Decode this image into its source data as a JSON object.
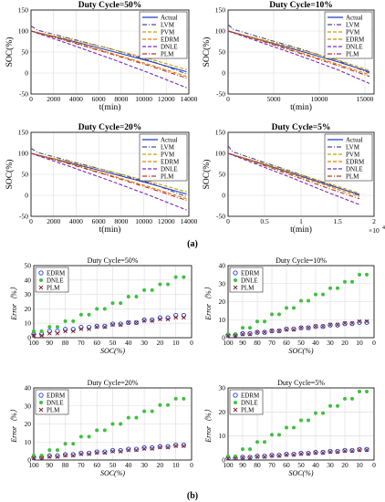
{
  "figure": {
    "label_a": "(a)",
    "label_b": "(b)"
  },
  "chart_data": [
    {
      "id": "a1",
      "type": "line",
      "title": "Duty Cycle=50%",
      "xlabel": "t(min)",
      "ylabel": "SOC(%)",
      "xlim": [
        0,
        14000
      ],
      "ylim": [
        -50,
        150
      ],
      "xticks": [
        0,
        2000,
        4000,
        6000,
        8000,
        10000,
        12000,
        14000
      ],
      "xtick_labels": [
        "0",
        "2000",
        "4000",
        "6000",
        "8000",
        "10000",
        "12000",
        "14000"
      ],
      "yticks": [
        -50,
        0,
        50,
        100,
        150
      ],
      "grid": true,
      "legend": "top-right",
      "series": [
        {
          "name": "Actual",
          "color": "#1f3fbf",
          "dash": "solid",
          "x": [
            0,
            3500,
            7000,
            10500,
            13800
          ],
          "y": [
            100,
            77,
            53,
            28,
            3
          ]
        },
        {
          "name": "LVM",
          "color": "#4a4a9a",
          "dash": "dashdot",
          "x": [
            0,
            600,
            3500,
            7000,
            10500,
            13800
          ],
          "y": [
            112,
            102,
            82,
            58,
            30,
            -2
          ]
        },
        {
          "name": "PVM",
          "color": "#c9a100",
          "dash": "dashed",
          "x": [
            0,
            3500,
            7000,
            10500,
            13800
          ],
          "y": [
            100,
            80,
            58,
            34,
            8
          ]
        },
        {
          "name": "EDRM",
          "color": "#e08000",
          "dash": "dashed",
          "x": [
            0,
            3500,
            7000,
            10500,
            13800
          ],
          "y": [
            100,
            75,
            48,
            20,
            -8
          ]
        },
        {
          "name": "DNLE",
          "color": "#7a2ac0",
          "dash": "dashed",
          "x": [
            0,
            3500,
            7000,
            10500,
            13800
          ],
          "y": [
            100,
            68,
            35,
            0,
            -35
          ]
        },
        {
          "name": "PLM",
          "color": "#c03020",
          "dash": "dashdot",
          "x": [
            0,
            3500,
            7000,
            10500,
            13800
          ],
          "y": [
            100,
            74,
            46,
            17,
            -12
          ]
        }
      ]
    },
    {
      "id": "a2",
      "type": "line",
      "title": "Duty Cycle=10%",
      "xlabel": "t(min)",
      "ylabel": "SOC(%)",
      "xlim": [
        0,
        16000
      ],
      "ylim": [
        -50,
        150
      ],
      "xticks": [
        0,
        5000,
        10000,
        15000
      ],
      "xtick_labels": [
        "0",
        "5000",
        "10000",
        "15000"
      ],
      "yticks": [
        -50,
        0,
        50,
        100,
        150
      ],
      "grid": true,
      "legend": "top-right",
      "series": [
        {
          "name": "Actual",
          "color": "#1f3fbf",
          "dash": "solid",
          "x": [
            0,
            4000,
            8000,
            12000,
            15500
          ],
          "y": [
            100,
            76,
            52,
            27,
            3
          ]
        },
        {
          "name": "LVM",
          "color": "#4a4a9a",
          "dash": "dashdot",
          "x": [
            0,
            600,
            4000,
            8000,
            12000,
            15500
          ],
          "y": [
            115,
            104,
            82,
            57,
            30,
            0
          ]
        },
        {
          "name": "PVM",
          "color": "#c9a100",
          "dash": "dashed",
          "x": [
            0,
            4000,
            8000,
            12000,
            15500
          ],
          "y": [
            100,
            78,
            55,
            31,
            6
          ]
        },
        {
          "name": "EDRM",
          "color": "#e08000",
          "dash": "dashed",
          "x": [
            0,
            4000,
            8000,
            12000,
            15500
          ],
          "y": [
            100,
            75,
            48,
            21,
            -4
          ]
        },
        {
          "name": "DNLE",
          "color": "#7a2ac0",
          "dash": "dashed",
          "x": [
            0,
            4000,
            8000,
            12000,
            15500
          ],
          "y": [
            100,
            70,
            40,
            8,
            -25
          ]
        },
        {
          "name": "PLM",
          "color": "#c03020",
          "dash": "dashdot",
          "x": [
            0,
            4000,
            8000,
            12000,
            15500
          ],
          "y": [
            100,
            74,
            46,
            18,
            -8
          ]
        }
      ]
    },
    {
      "id": "a3",
      "type": "line",
      "title": "Duty Cycle=20%",
      "xlabel": "t(min)",
      "ylabel": "SOC(%)",
      "xlim": [
        0,
        14000
      ],
      "ylim": [
        -50,
        150
      ],
      "xticks": [
        0,
        2000,
        4000,
        6000,
        8000,
        10000,
        12000,
        14000
      ],
      "xtick_labels": [
        "0",
        "2000",
        "4000",
        "6000",
        "8000",
        "10000",
        "12000",
        "14000"
      ],
      "yticks": [
        -50,
        0,
        50,
        100,
        150
      ],
      "grid": true,
      "legend": "top-right",
      "series": [
        {
          "name": "Actual",
          "color": "#1f3fbf",
          "dash": "solid",
          "x": [
            0,
            3500,
            7000,
            10500,
            13800
          ],
          "y": [
            100,
            77,
            53,
            28,
            3
          ]
        },
        {
          "name": "LVM",
          "color": "#4a4a9a",
          "dash": "dashdot",
          "x": [
            0,
            600,
            3500,
            7000,
            10500,
            13800
          ],
          "y": [
            112,
            102,
            81,
            57,
            30,
            -3
          ]
        },
        {
          "name": "PVM",
          "color": "#c9a100",
          "dash": "dashed",
          "x": [
            0,
            3500,
            7000,
            10500,
            13800
          ],
          "y": [
            100,
            79,
            57,
            33,
            8
          ]
        },
        {
          "name": "EDRM",
          "color": "#e08000",
          "dash": "dashed",
          "x": [
            0,
            3500,
            7000,
            10500,
            13800
          ],
          "y": [
            100,
            75,
            48,
            20,
            -8
          ]
        },
        {
          "name": "DNLE",
          "color": "#7a2ac0",
          "dash": "dashed",
          "x": [
            0,
            3500,
            7000,
            10500,
            13800
          ],
          "y": [
            100,
            68,
            35,
            0,
            -35
          ]
        },
        {
          "name": "PLM",
          "color": "#c03020",
          "dash": "dashdot",
          "x": [
            0,
            3500,
            7000,
            10500,
            13800
          ],
          "y": [
            100,
            74,
            46,
            17,
            -12
          ]
        }
      ]
    },
    {
      "id": "a4",
      "type": "line",
      "title": "Duty Cycle=5%",
      "xlabel": "t(min)",
      "ylabel": "SOC(%)",
      "x_multiplier": "×10",
      "x_multiplier_exp": "4",
      "xlim": [
        0,
        2
      ],
      "ylim": [
        -50,
        150
      ],
      "xticks": [
        0,
        0.5,
        1,
        1.5,
        2
      ],
      "xtick_labels": [
        "0",
        "0.5",
        "1",
        "1.5",
        "2"
      ],
      "yticks": [
        -50,
        0,
        50,
        100,
        150
      ],
      "grid": true,
      "legend": "top-right",
      "series": [
        {
          "name": "Actual",
          "color": "#1f3fbf",
          "dash": "solid",
          "x": [
            0,
            0.45,
            0.9,
            1.35,
            1.8
          ],
          "y": [
            100,
            76,
            51,
            26,
            2
          ]
        },
        {
          "name": "LVM",
          "color": "#4a4a9a",
          "dash": "dashdot",
          "x": [
            0,
            0.06,
            0.45,
            0.9,
            1.35,
            1.8
          ],
          "y": [
            118,
            104,
            81,
            55,
            28,
            0
          ]
        },
        {
          "name": "PVM",
          "color": "#c9a100",
          "dash": "dashed",
          "x": [
            0,
            0.45,
            0.9,
            1.35,
            1.8
          ],
          "y": [
            100,
            78,
            54,
            30,
            5
          ]
        },
        {
          "name": "EDRM",
          "color": "#e08000",
          "dash": "dashed",
          "x": [
            0,
            0.45,
            0.9,
            1.35,
            1.8
          ],
          "y": [
            100,
            75,
            49,
            23,
            -3
          ]
        },
        {
          "name": "DNLE",
          "color": "#7a2ac0",
          "dash": "dashed",
          "x": [
            0,
            0.45,
            0.9,
            1.35,
            1.8
          ],
          "y": [
            100,
            70,
            40,
            8,
            -22
          ]
        },
        {
          "name": "PLM",
          "color": "#c03020",
          "dash": "dashdot",
          "x": [
            0,
            0.45,
            0.9,
            1.35,
            1.8
          ],
          "y": [
            100,
            74,
            46,
            18,
            -8
          ]
        }
      ]
    },
    {
      "id": "b1",
      "type": "scatter",
      "title": "Duty Cycle=50%",
      "xlabel": "SOC(%)",
      "ylabel": "Error（%）",
      "x_reversed": true,
      "xlim": [
        0,
        100
      ],
      "ylim": [
        0,
        50
      ],
      "xticks": [
        100,
        90,
        80,
        70,
        60,
        50,
        40,
        30,
        20,
        10,
        0
      ],
      "yticks": [
        0,
        10,
        20,
        30,
        40,
        50
      ],
      "grid": true,
      "legend": "top-left",
      "x": [
        100,
        95,
        90,
        85,
        80,
        75,
        70,
        65,
        60,
        55,
        50,
        45,
        40,
        35,
        30,
        25,
        20,
        15,
        10,
        5
      ],
      "series": [
        {
          "name": "EDRM",
          "marker": "o",
          "color": "#1f3fe0",
          "values": [
            2.5,
            2.5,
            4.5,
            4.5,
            5.8,
            5.8,
            7.2,
            7.2,
            8.0,
            8.0,
            9.5,
            9.5,
            10.5,
            10.5,
            12.3,
            12.3,
            13.8,
            13.8,
            15.5,
            15.5
          ]
        },
        {
          "name": "DNLE",
          "marker": "•",
          "color": "#40c040",
          "values": [
            4.5,
            4.5,
            7.5,
            7.5,
            11.5,
            11.5,
            16.0,
            16.0,
            20.0,
            20.0,
            24.0,
            24.0,
            28.5,
            28.5,
            33.0,
            33.0,
            37.0,
            37.0,
            42.0,
            42.0
          ]
        },
        {
          "name": "PLM",
          "marker": "x",
          "color": "#802020",
          "values": [
            1.5,
            1.5,
            3.0,
            3.0,
            4.5,
            4.5,
            6.0,
            6.0,
            7.5,
            7.5,
            9.0,
            9.0,
            10.5,
            10.5,
            11.8,
            11.8,
            12.8,
            12.8,
            14.0,
            14.0
          ]
        }
      ]
    },
    {
      "id": "b2",
      "type": "scatter",
      "title": "Duty Cycle=10%",
      "xlabel": "SOC(%)",
      "ylabel": "Error（%）",
      "x_reversed": true,
      "xlim": [
        0,
        100
      ],
      "ylim": [
        0,
        40
      ],
      "xticks": [
        100,
        90,
        80,
        70,
        60,
        50,
        40,
        30,
        20,
        10,
        0
      ],
      "yticks": [
        0,
        10,
        20,
        30,
        40
      ],
      "grid": true,
      "legend": "top-left",
      "x": [
        100,
        95,
        90,
        85,
        80,
        75,
        70,
        65,
        60,
        55,
        50,
        45,
        40,
        35,
        30,
        25,
        20,
        15,
        10,
        5
      ],
      "series": [
        {
          "name": "EDRM",
          "marker": "o",
          "color": "#1f3fe0",
          "values": [
            1.5,
            1.5,
            2.3,
            2.3,
            3.0,
            3.0,
            3.8,
            3.8,
            4.8,
            4.8,
            5.5,
            5.5,
            6.2,
            6.2,
            7.0,
            7.0,
            7.8,
            7.8,
            8.5,
            8.5
          ]
        },
        {
          "name": "DNLE",
          "marker": "•",
          "color": "#40c040",
          "values": [
            2.0,
            2.0,
            5.5,
            5.5,
            9.0,
            9.0,
            13.0,
            13.0,
            16.5,
            16.5,
            20.5,
            20.5,
            24.0,
            24.0,
            27.5,
            27.5,
            31.0,
            31.0,
            35.0,
            35.0
          ]
        },
        {
          "name": "PLM",
          "marker": "x",
          "color": "#802020",
          "values": [
            1.0,
            1.0,
            2.0,
            2.0,
            3.0,
            3.0,
            3.8,
            3.8,
            4.5,
            4.5,
            5.5,
            5.5,
            6.3,
            6.3,
            7.2,
            7.2,
            8.0,
            8.0,
            9.0,
            9.0
          ]
        }
      ]
    },
    {
      "id": "b3",
      "type": "scatter",
      "title": "Duty Cycle=20%",
      "xlabel": "SOC(%)",
      "ylabel": "Error（%）",
      "x_reversed": true,
      "xlim": [
        0,
        100
      ],
      "ylim": [
        0,
        40
      ],
      "xticks": [
        100,
        90,
        80,
        70,
        60,
        50,
        40,
        30,
        20,
        10,
        0
      ],
      "yticks": [
        0,
        10,
        20,
        30,
        40
      ],
      "grid": true,
      "legend": "top-left",
      "x": [
        100,
        95,
        90,
        85,
        80,
        75,
        70,
        65,
        60,
        55,
        50,
        45,
        40,
        35,
        30,
        25,
        20,
        15,
        10,
        5
      ],
      "series": [
        {
          "name": "EDRM",
          "marker": "o",
          "color": "#1f3fe0",
          "values": [
            1.5,
            1.5,
            2.3,
            2.3,
            3.0,
            3.0,
            3.8,
            3.8,
            4.5,
            4.5,
            5.3,
            5.3,
            6.0,
            6.0,
            6.8,
            6.8,
            7.5,
            7.5,
            8.3,
            8.3
          ]
        },
        {
          "name": "DNLE",
          "marker": "•",
          "color": "#40c040",
          "values": [
            2.5,
            2.5,
            5.5,
            5.5,
            9.0,
            9.0,
            13.0,
            13.0,
            16.5,
            16.5,
            20.0,
            20.0,
            23.5,
            23.5,
            27.0,
            27.0,
            30.5,
            30.5,
            34.0,
            34.0
          ]
        },
        {
          "name": "PLM",
          "marker": "x",
          "color": "#802020",
          "values": [
            1.0,
            1.0,
            1.8,
            1.8,
            2.5,
            2.5,
            3.3,
            3.3,
            4.0,
            4.0,
            4.8,
            4.8,
            5.5,
            5.5,
            6.3,
            6.3,
            7.0,
            7.0,
            7.8,
            7.8
          ]
        }
      ]
    },
    {
      "id": "b4",
      "type": "scatter",
      "title": "Duty Cycle=5%",
      "xlabel": "SOC(%)",
      "ylabel": "Error（%）",
      "x_reversed": true,
      "xlim": [
        0,
        100
      ],
      "ylim": [
        0,
        30
      ],
      "xticks": [
        100,
        90,
        80,
        70,
        60,
        50,
        40,
        30,
        20,
        10,
        0
      ],
      "yticks": [
        0,
        10,
        20,
        30
      ],
      "grid": true,
      "legend": "top-left",
      "x": [
        100,
        95,
        90,
        85,
        80,
        75,
        70,
        65,
        60,
        55,
        50,
        45,
        40,
        35,
        30,
        25,
        20,
        15,
        10,
        5
      ],
      "series": [
        {
          "name": "EDRM",
          "marker": "o",
          "color": "#1f3fe0",
          "values": [
            0.8,
            0.8,
            1.2,
            1.2,
            1.6,
            1.6,
            2.0,
            2.0,
            2.4,
            2.4,
            2.8,
            2.8,
            3.2,
            3.2,
            3.6,
            3.6,
            4.0,
            4.0,
            4.4,
            4.4
          ]
        },
        {
          "name": "DNLE",
          "marker": "•",
          "color": "#40c040",
          "values": [
            1.5,
            1.5,
            4.5,
            4.5,
            7.5,
            7.5,
            10.5,
            10.5,
            13.5,
            13.5,
            16.5,
            16.5,
            19.5,
            19.5,
            22.5,
            22.5,
            25.5,
            25.5,
            28.5,
            28.5
          ]
        },
        {
          "name": "PLM",
          "marker": "x",
          "color": "#802020",
          "values": [
            0.6,
            0.6,
            1.0,
            1.0,
            1.4,
            1.4,
            1.8,
            1.8,
            2.2,
            2.2,
            2.6,
            2.6,
            3.0,
            3.0,
            3.4,
            3.4,
            3.8,
            3.8,
            4.2,
            4.2
          ]
        }
      ]
    }
  ]
}
